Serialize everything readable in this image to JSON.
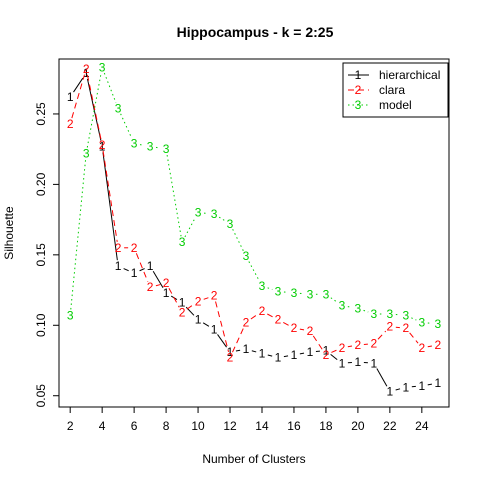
{
  "chart_data": {
    "type": "line",
    "title": "Hippocampus - k = 2:25",
    "xlabel": "Number of Clusters",
    "ylabel": "Silhouette",
    "xlim": [
      1.3,
      25.7
    ],
    "ylim": [
      0.042,
      0.289
    ],
    "x_ticks": [
      2,
      4,
      6,
      8,
      10,
      12,
      14,
      16,
      18,
      20,
      22,
      24
    ],
    "y_ticks": [
      0.05,
      0.1,
      0.15,
      0.2,
      0.25
    ],
    "y_tick_labels": [
      "0.05",
      "0.10",
      "0.15",
      "0.20",
      "0.25"
    ],
    "x": [
      2,
      3,
      4,
      5,
      6,
      7,
      8,
      9,
      10,
      11,
      12,
      13,
      14,
      15,
      16,
      17,
      18,
      19,
      20,
      21,
      22,
      23,
      24,
      25
    ],
    "series": [
      {
        "name": "hierarchical",
        "symbol": "1",
        "color": "#000000",
        "dash": "solid",
        "values": [
          0.262,
          0.279,
          0.227,
          0.142,
          0.137,
          0.142,
          0.123,
          0.116,
          0.104,
          0.097,
          0.081,
          0.083,
          0.08,
          0.077,
          0.079,
          0.081,
          0.082,
          0.073,
          0.074,
          0.073,
          0.053,
          0.056,
          0.057,
          0.059
        ]
      },
      {
        "name": "clara",
        "symbol": "2",
        "color": "#ff0000",
        "dash": "dashed",
        "values": [
          0.243,
          0.282,
          0.228,
          0.155,
          0.155,
          0.127,
          0.13,
          0.109,
          0.117,
          0.121,
          0.077,
          0.102,
          0.11,
          0.104,
          0.098,
          0.096,
          0.079,
          0.084,
          0.086,
          0.087,
          0.099,
          0.098,
          0.084,
          0.086
        ]
      },
      {
        "name": "model",
        "symbol": "3",
        "color": "#00cd00",
        "dash": "dotted",
        "values": [
          0.107,
          0.222,
          0.283,
          0.254,
          0.229,
          0.227,
          0.225,
          0.159,
          0.18,
          0.179,
          0.172,
          0.149,
          0.128,
          0.124,
          0.123,
          0.122,
          0.122,
          0.114,
          0.112,
          0.108,
          0.108,
          0.107,
          0.102,
          0.101
        ]
      }
    ],
    "legend": {
      "position": "top-right",
      "entries": [
        "hierarchical",
        "clara",
        "model"
      ]
    },
    "grid": false
  }
}
